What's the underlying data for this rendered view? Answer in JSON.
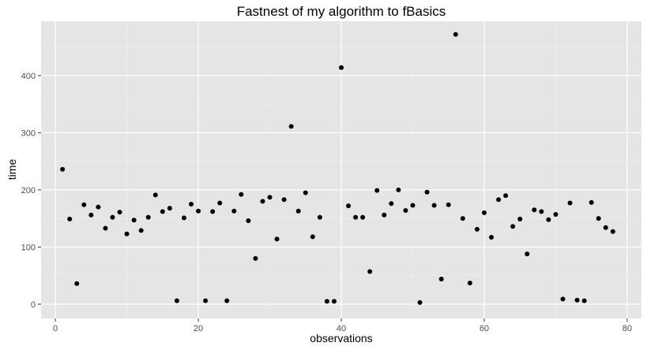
{
  "chart_data": {
    "type": "scatter",
    "title": "Fastnest of my algorithm to fBasics",
    "xlabel": "observations",
    "ylabel": "time",
    "xlim": [
      -2,
      82
    ],
    "ylim": [
      -25,
      495
    ],
    "x_ticks": [
      0,
      20,
      40,
      60,
      80
    ],
    "x_tick_labels": [
      "0",
      "20",
      "40",
      "60",
      "80"
    ],
    "y_ticks": [
      0,
      100,
      200,
      300,
      400
    ],
    "y_tick_labels": [
      "0",
      "100",
      "200",
      "300",
      "400"
    ],
    "grid": true,
    "legend": "none",
    "colors": {
      "panel": "#e5e5e5",
      "grid_major": "#ffffff",
      "grid_minor": "#f2f2f2",
      "point": "#000000",
      "tick": "#333333"
    },
    "points": [
      [
        1,
        236
      ],
      [
        2,
        149
      ],
      [
        3,
        36
      ],
      [
        4,
        174
      ],
      [
        5,
        156
      ],
      [
        6,
        170
      ],
      [
        7,
        133
      ],
      [
        8,
        152
      ],
      [
        9,
        161
      ],
      [
        10,
        123
      ],
      [
        11,
        147
      ],
      [
        12,
        129
      ],
      [
        13,
        152
      ],
      [
        14,
        191
      ],
      [
        15,
        162
      ],
      [
        16,
        168
      ],
      [
        17,
        6
      ],
      [
        18,
        151
      ],
      [
        19,
        175
      ],
      [
        20,
        163
      ],
      [
        21,
        6
      ],
      [
        22,
        162
      ],
      [
        23,
        177
      ],
      [
        24,
        6
      ],
      [
        25,
        163
      ],
      [
        26,
        192
      ],
      [
        27,
        146
      ],
      [
        28,
        80
      ],
      [
        29,
        180
      ],
      [
        30,
        187
      ],
      [
        31,
        114
      ],
      [
        32,
        183
      ],
      [
        33,
        311
      ],
      [
        34,
        163
      ],
      [
        35,
        195
      ],
      [
        36,
        118
      ],
      [
        37,
        152
      ],
      [
        38,
        5
      ],
      [
        39,
        5
      ],
      [
        40,
        414
      ],
      [
        41,
        172
      ],
      [
        42,
        152
      ],
      [
        43,
        152
      ],
      [
        44,
        57
      ],
      [
        45,
        199
      ],
      [
        46,
        156
      ],
      [
        47,
        176
      ],
      [
        48,
        200
      ],
      [
        49,
        164
      ],
      [
        50,
        173
      ],
      [
        51,
        3
      ],
      [
        52,
        196
      ],
      [
        53,
        173
      ],
      [
        54,
        44
      ],
      [
        55,
        174
      ],
      [
        56,
        472
      ],
      [
        57,
        150
      ],
      [
        58,
        37
      ],
      [
        59,
        131
      ],
      [
        60,
        160
      ],
      [
        61,
        117
      ],
      [
        62,
        183
      ],
      [
        63,
        190
      ],
      [
        64,
        136
      ],
      [
        65,
        149
      ],
      [
        66,
        88
      ],
      [
        67,
        165
      ],
      [
        68,
        162
      ],
      [
        69,
        148
      ],
      [
        70,
        157
      ],
      [
        71,
        9
      ],
      [
        72,
        177
      ],
      [
        73,
        7
      ],
      [
        74,
        6
      ],
      [
        75,
        178
      ],
      [
        76,
        150
      ],
      [
        77,
        134
      ],
      [
        78,
        127
      ]
    ]
  }
}
